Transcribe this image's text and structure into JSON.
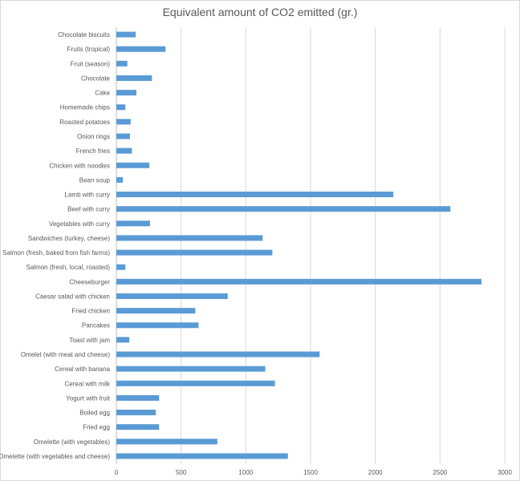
{
  "chart_data": {
    "type": "bar",
    "orientation": "horizontal",
    "title": "Equivalent amount of CO2 emitted (gr.)",
    "xlabel": "",
    "ylabel": "",
    "xlim": [
      0,
      3000
    ],
    "x_ticks": [
      "0",
      "500",
      "1000",
      "1500",
      "2000",
      "2500",
      "3000"
    ],
    "grid": true,
    "legend": "none",
    "bar_color": "#5b9bd5",
    "categories": [
      "Chocolate biscuits",
      "Fruits (tropical)",
      "Fruit (season)",
      "Chocolate",
      "Cake",
      "Homemade chips",
      "Roasted potatoes",
      "Onion rings",
      "French fries",
      "Chicken with noodles",
      "Bean soup",
      "Lamb with curry",
      "Beef with curry",
      "Vegetables with curry",
      "Sandwiches (turkey, cheese)",
      "Salmon (fresh, baked from fish farms)",
      "Salmon (fresh, local, roasted)",
      "Cheeseburger",
      "Caesar salad with chicken",
      "Fried chicken",
      "Pancakes",
      "Toast with jam",
      "Omelet (with meat and cheese)",
      "Cereal with banana",
      "Cereal with milk",
      "Yogurt with fruit",
      "Boiled egg",
      "Fried egg",
      "Omelette (with vegetables)",
      "Omelette (with vegetables and cheese)"
    ],
    "values": [
      150,
      380,
      85,
      275,
      155,
      70,
      110,
      105,
      120,
      255,
      50,
      2140,
      2580,
      260,
      1130,
      1205,
      70,
      2820,
      860,
      610,
      635,
      100,
      1570,
      1150,
      1225,
      330,
      305,
      330,
      780,
      1325
    ]
  }
}
